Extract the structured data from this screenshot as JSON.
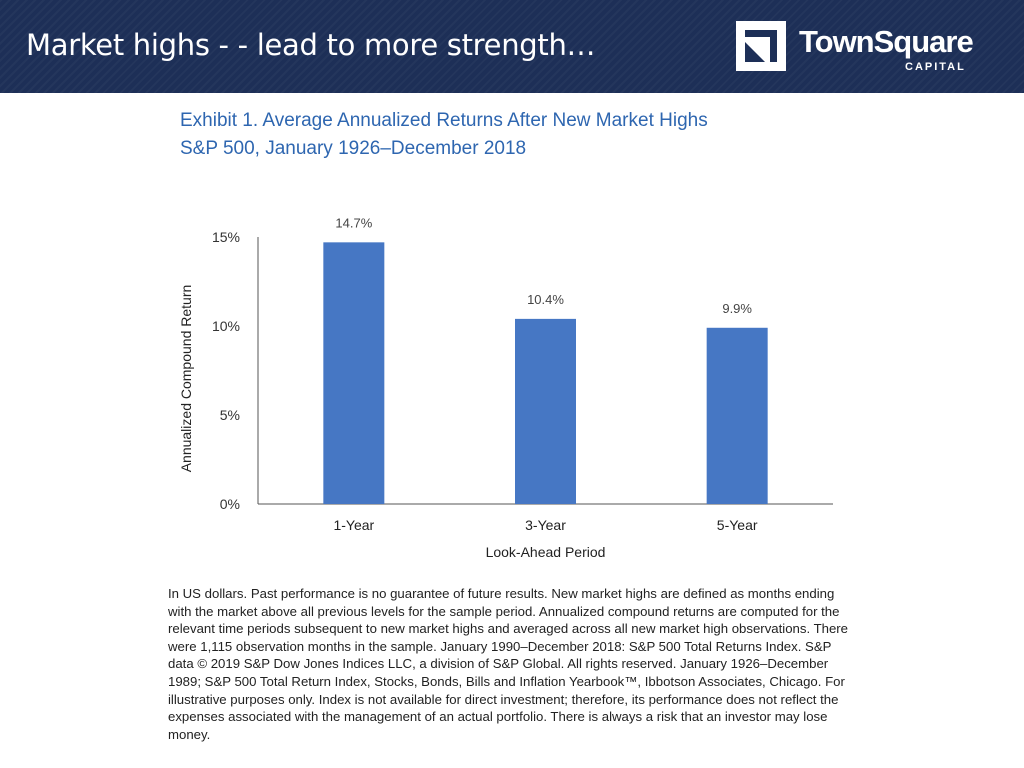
{
  "header": {
    "title": "Market highs - - lead to more strength…",
    "logo_name": "TownSquare",
    "logo_sub": "CAPITAL"
  },
  "exhibit": {
    "title_line1": "Exhibit 1. Average Annualized Returns After New Market Highs",
    "title_line2": "S&P 500, January 1926–December 2018"
  },
  "chart_data": {
    "type": "bar",
    "categories": [
      "1-Year",
      "3-Year",
      "5-Year"
    ],
    "values": [
      14.7,
      10.4,
      9.9
    ],
    "value_labels": [
      "14.7%",
      "10.4%",
      "9.9%"
    ],
    "xlabel": "Look-Ahead Period",
    "ylabel": "Annualized Compound Return",
    "ylim": [
      0,
      15
    ],
    "yticks": [
      0,
      5,
      10,
      15
    ],
    "ytick_labels": [
      "0%",
      "5%",
      "10%",
      "15%"
    ],
    "grid": false,
    "bar_color": "#4677c4"
  },
  "footnote": "In US dollars. Past performance is no guarantee of future results. New market highs are defined as months ending with the market above all previous levels for the sample period. Annualized compound returns are computed for the relevant time periods subsequent to new market highs and averaged across all new market high observations. There were 1,115 observation months in the sample. January 1990–December 2018: S&P 500 Total Returns Index. S&P data © 2019 S&P Dow Jones Indices LLC, a division of S&P Global. All rights reserved. January 1926–December 1989; S&P 500 Total Return Index, Stocks, Bonds, Bills and Inflation Yearbook™, Ibbotson Associates, Chicago. For illustrative purposes only. Index is not available for direct investment; therefore, its performance does not reflect the expenses associated with the management of an actual portfolio. There is always a risk that an investor may lose money."
}
